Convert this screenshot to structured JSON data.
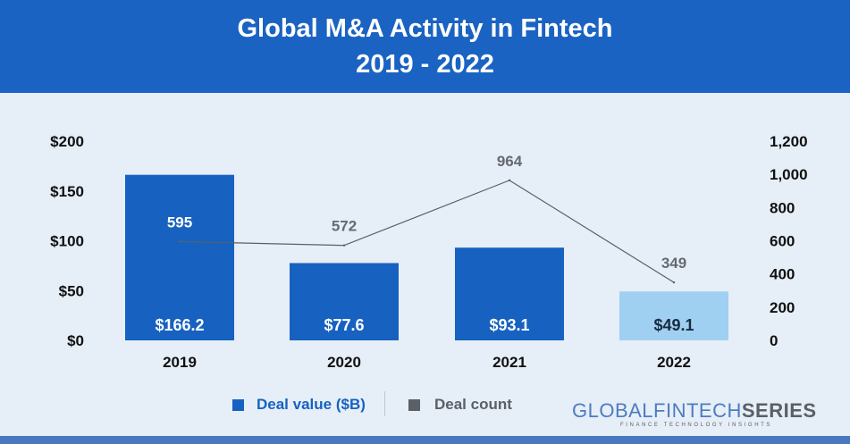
{
  "header": {
    "title_line1": "Global M&A Activity in Fintech",
    "title_line2": "2019 - 2022",
    "bg_color": "#1a63c2"
  },
  "chart_data": {
    "type": "bar",
    "title": "Global M&A Activity in Fintech 2019 - 2022",
    "categories": [
      "2019",
      "2020",
      "2021",
      "2022"
    ],
    "series": [
      {
        "name": "Deal value ($B)",
        "kind": "bar",
        "axis": "left",
        "values": [
          166.2,
          77.6,
          93.1,
          49.1
        ],
        "labels": [
          "$166.2",
          "$77.6",
          "$93.1",
          "$49.1"
        ],
        "colors": [
          "#1762c0",
          "#1762c0",
          "#1762c0",
          "#9fd0f2"
        ]
      },
      {
        "name": "Deal count",
        "kind": "line",
        "axis": "right",
        "values": [
          595,
          572,
          964,
          349
        ],
        "labels": [
          "595",
          "572",
          "964",
          "349"
        ],
        "color": "#5b5f66"
      }
    ],
    "y_left": {
      "ylim": [
        0,
        200
      ],
      "ticks": [
        "$0",
        "$50",
        "$100",
        "$150",
        "$200"
      ],
      "tick_values": [
        0,
        50,
        100,
        150,
        200
      ]
    },
    "y_right": {
      "ylim": [
        0,
        1200
      ],
      "ticks": [
        "0",
        "200",
        "400",
        "600",
        "800",
        "1,000",
        "1,200"
      ],
      "tick_values": [
        0,
        200,
        400,
        600,
        800,
        1000,
        1200
      ]
    },
    "grid": false,
    "legend_position": "bottom"
  },
  "legend": {
    "items": [
      {
        "label": "Deal value ($B)",
        "color": "#1762c0"
      },
      {
        "label": "Deal count",
        "color": "#5b5f66"
      }
    ]
  },
  "brand": {
    "logo_prefix": "GLOBALFINTECH",
    "logo_suffix": "SERIES",
    "tagline": "FINANCE TECHNOLOGY INSIGHTS"
  }
}
